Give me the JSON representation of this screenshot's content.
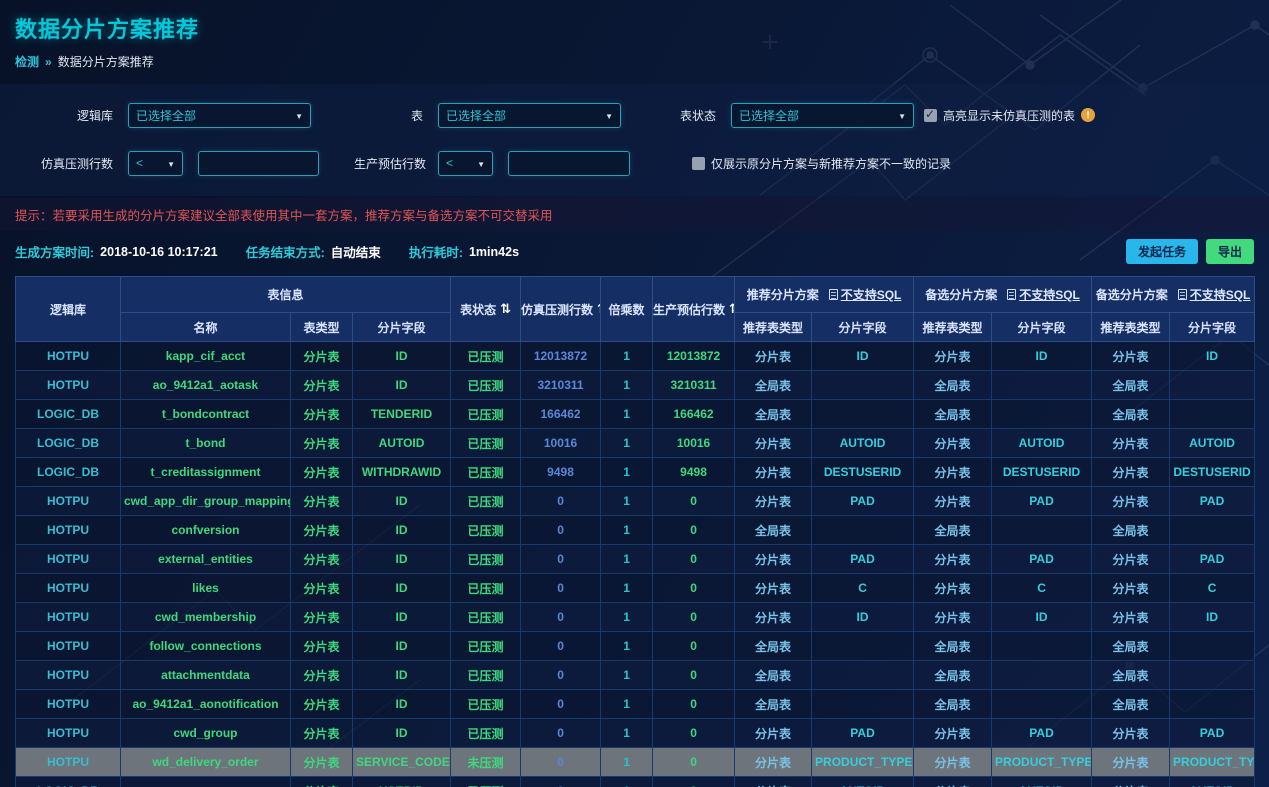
{
  "page": {
    "title": "数据分片方案推荐",
    "breadcrumb": {
      "home": "检测",
      "separator": "»",
      "current": "数据分片方案推荐"
    }
  },
  "filters": {
    "logic_db": {
      "label": "逻辑库",
      "value": "已选择全部"
    },
    "table": {
      "label": "表",
      "value": "已选择全部"
    },
    "table_status": {
      "label": "表状态",
      "value": "已选择全部"
    },
    "highlight_checkbox": {
      "label": "高亮显示未仿真压测的表",
      "checked": true
    },
    "sim_rows": {
      "label": "仿真压测行数",
      "op": "<",
      "value": ""
    },
    "prod_rows": {
      "label": "生产预估行数",
      "op": "<",
      "value": ""
    },
    "diff_checkbox": {
      "label": "仅展示原分片方案与新推荐方案不一致的记录",
      "checked": false
    }
  },
  "notice": "提示：若要采用生成的分片方案建议全部表使用其中一套方案，推荐方案与备选方案不可交替采用",
  "meta": {
    "gen_time_label": "生成方案时间:",
    "gen_time": "2018-10-16 10:17:21",
    "end_mode_label": "任务结束方式:",
    "end_mode": "自动结束",
    "duration_label": "执行耗时:",
    "duration": "1min42s"
  },
  "actions": {
    "launch": "发起任务",
    "export": "导出"
  },
  "table": {
    "header": {
      "logic_db": "逻辑库",
      "table_info": "表信息",
      "name": "名称",
      "table_type": "表类型",
      "shard_field": "分片字段",
      "table_status": "表状态",
      "sim_rows": "仿真压测行数",
      "multiplier": "倍乘数",
      "prod_rows": "生产预估行数",
      "recommend_type": "推荐表类型",
      "sort_icon": "⇅"
    },
    "scheme_groups": [
      {
        "title": "推荐分片方案",
        "link": "不支持SQL"
      },
      {
        "title": "备选分片方案",
        "link": "不支持SQL"
      },
      {
        "title": "备选分片方案",
        "link": "不支持SQL"
      }
    ],
    "rows": [
      {
        "cells": [
          "HOTPU",
          "kapp_cif_acct",
          "分片表",
          "ID",
          "已压测",
          "12013872",
          "1",
          "12013872",
          "分片表",
          "ID",
          "分片表",
          "ID",
          "分片表",
          "ID"
        ],
        "highlight": false
      },
      {
        "cells": [
          "HOTPU",
          "ao_9412a1_aotask",
          "分片表",
          "ID",
          "已压测",
          "3210311",
          "1",
          "3210311",
          "全局表",
          "",
          "全局表",
          "",
          "全局表",
          ""
        ],
        "highlight": false
      },
      {
        "cells": [
          "LOGIC_DB",
          "t_bondcontract",
          "分片表",
          "TENDERID",
          "已压测",
          "166462",
          "1",
          "166462",
          "全局表",
          "",
          "全局表",
          "",
          "全局表",
          ""
        ],
        "highlight": false
      },
      {
        "cells": [
          "LOGIC_DB",
          "t_bond",
          "分片表",
          "AUTOID",
          "已压测",
          "10016",
          "1",
          "10016",
          "分片表",
          "AUTOID",
          "分片表",
          "AUTOID",
          "分片表",
          "AUTOID"
        ],
        "highlight": false
      },
      {
        "cells": [
          "LOGIC_DB",
          "t_creditassignment",
          "分片表",
          "WITHDRAWID",
          "已压测",
          "9498",
          "1",
          "9498",
          "分片表",
          "DESTUSERID",
          "分片表",
          "DESTUSERID",
          "分片表",
          "DESTUSERID"
        ],
        "highlight": false
      },
      {
        "cells": [
          "HOTPU",
          "cwd_app_dir_group_mapping",
          "分片表",
          "ID",
          "已压测",
          "0",
          "1",
          "0",
          "分片表",
          "PAD",
          "分片表",
          "PAD",
          "分片表",
          "PAD"
        ],
        "highlight": false
      },
      {
        "cells": [
          "HOTPU",
          "confversion",
          "分片表",
          "ID",
          "已压测",
          "0",
          "1",
          "0",
          "全局表",
          "",
          "全局表",
          "",
          "全局表",
          ""
        ],
        "highlight": false
      },
      {
        "cells": [
          "HOTPU",
          "external_entities",
          "分片表",
          "ID",
          "已压测",
          "0",
          "1",
          "0",
          "分片表",
          "PAD",
          "分片表",
          "PAD",
          "分片表",
          "PAD"
        ],
        "highlight": false
      },
      {
        "cells": [
          "HOTPU",
          "likes",
          "分片表",
          "ID",
          "已压测",
          "0",
          "1",
          "0",
          "分片表",
          "C",
          "分片表",
          "C",
          "分片表",
          "C"
        ],
        "highlight": false
      },
      {
        "cells": [
          "HOTPU",
          "cwd_membership",
          "分片表",
          "ID",
          "已压测",
          "0",
          "1",
          "0",
          "分片表",
          "ID",
          "分片表",
          "ID",
          "分片表",
          "ID"
        ],
        "highlight": false
      },
      {
        "cells": [
          "HOTPU",
          "follow_connections",
          "分片表",
          "ID",
          "已压测",
          "0",
          "1",
          "0",
          "全局表",
          "",
          "全局表",
          "",
          "全局表",
          ""
        ],
        "highlight": false
      },
      {
        "cells": [
          "HOTPU",
          "attachmentdata",
          "分片表",
          "ID",
          "已压测",
          "0",
          "1",
          "0",
          "全局表",
          "",
          "全局表",
          "",
          "全局表",
          ""
        ],
        "highlight": false
      },
      {
        "cells": [
          "HOTPU",
          "ao_9412a1_aonotification",
          "分片表",
          "ID",
          "已压测",
          "0",
          "1",
          "0",
          "全局表",
          "",
          "全局表",
          "",
          "全局表",
          ""
        ],
        "highlight": false
      },
      {
        "cells": [
          "HOTPU",
          "cwd_group",
          "分片表",
          "ID",
          "已压测",
          "0",
          "1",
          "0",
          "分片表",
          "PAD",
          "分片表",
          "PAD",
          "分片表",
          "PAD"
        ],
        "highlight": false
      },
      {
        "cells": [
          "HOTPU",
          "wd_delivery_order",
          "分片表",
          "SERVICE_CODE",
          "未压测",
          "0",
          "1",
          "0",
          "分片表",
          "PRODUCT_TYPE",
          "分片表",
          "PRODUCT_TYPE",
          "分片表",
          "PRODUCT_TYPE"
        ],
        "highlight": true
      },
      {
        "cells": [
          "LOGIC_DB",
          "t_account",
          "分片表",
          "USERID",
          "已压测",
          "0",
          "1",
          "0",
          "分片表",
          "AUTOID",
          "分片表",
          "AUTOID",
          "分片表",
          "AUTOID"
        ],
        "highlight": false
      }
    ]
  }
}
